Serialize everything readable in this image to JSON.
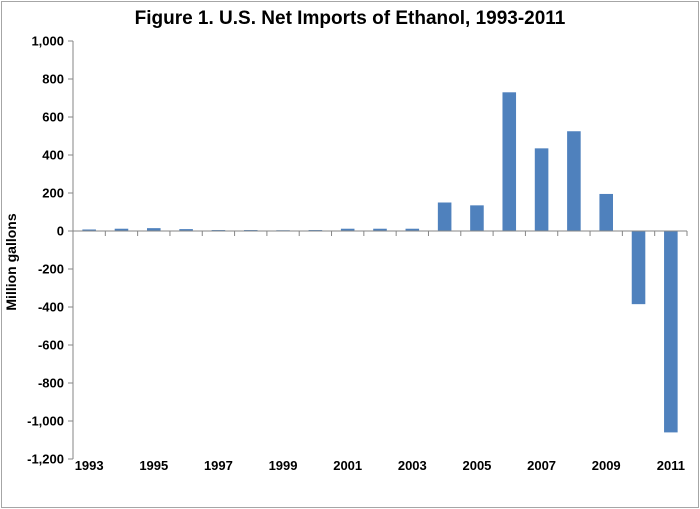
{
  "chart_data": {
    "type": "bar",
    "title": "Figure 1. U.S. Net Imports of Ethanol, 1993-2011",
    "ylabel": "Million gallons",
    "xlabel": "",
    "categories": [
      "1993",
      "1994",
      "1995",
      "1996",
      "1997",
      "1998",
      "1999",
      "2000",
      "2001",
      "2002",
      "2003",
      "2004",
      "2005",
      "2006",
      "2007",
      "2008",
      "2009",
      "2010",
      "2011"
    ],
    "x_tick_labels": [
      "1993",
      "1995",
      "1997",
      "1999",
      "2001",
      "2003",
      "2005",
      "2007",
      "2009",
      "2011"
    ],
    "values": [
      8,
      12,
      15,
      10,
      5,
      5,
      4,
      5,
      12,
      12,
      12,
      150,
      135,
      730,
      435,
      525,
      195,
      -385,
      -1060
    ],
    "ylim": [
      -1200,
      1000
    ],
    "y_ticks": [
      1000,
      800,
      600,
      400,
      200,
      0,
      -200,
      -400,
      -600,
      -800,
      -1000,
      -1200
    ],
    "y_tick_labels": [
      "1,000",
      "800",
      "600",
      "400",
      "200",
      "0",
      "-200",
      "-400",
      "-600",
      "-800",
      "-1,000",
      "-1,200"
    ],
    "bar_color": "#4f81bd",
    "grid": false,
    "legend": "none"
  }
}
